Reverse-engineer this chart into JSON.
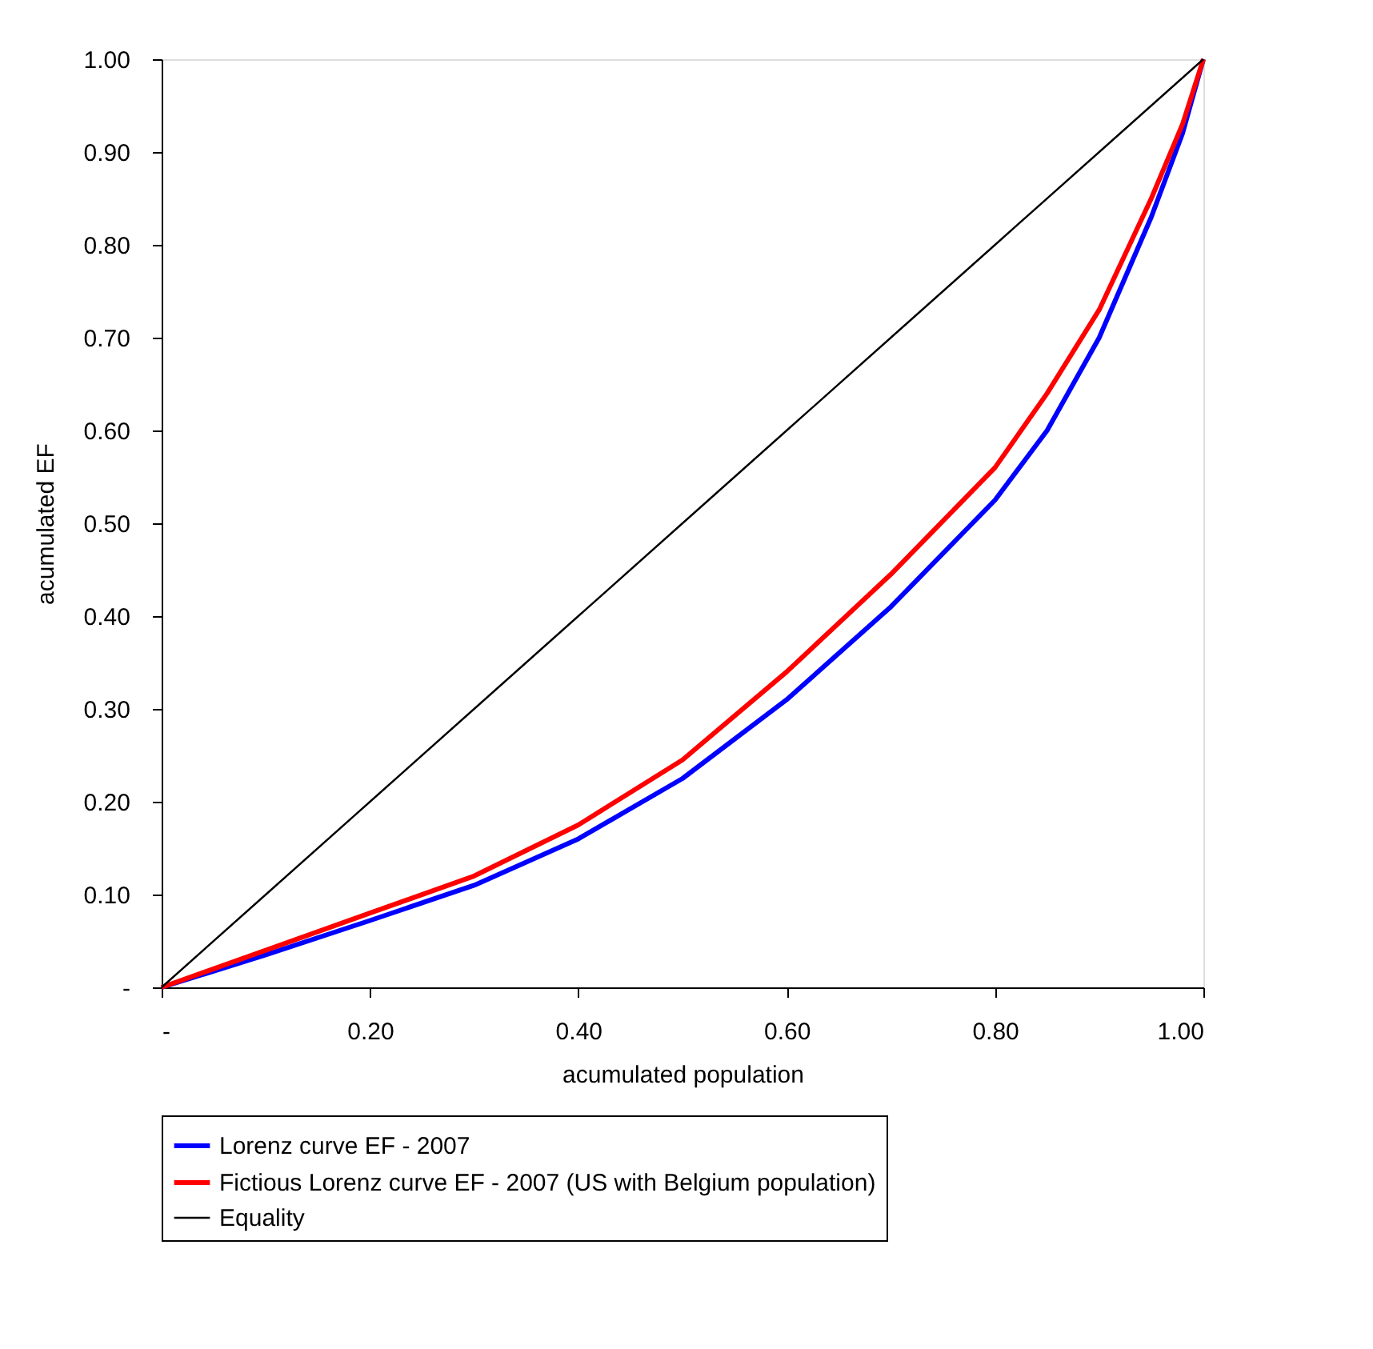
{
  "chart_data": {
    "type": "line",
    "xlabel": "acumulated population",
    "ylabel": "acumulated EF",
    "xlim": [
      0,
      1
    ],
    "ylim": [
      0,
      1
    ],
    "xticks": [
      {
        "value": 0,
        "label": "-"
      },
      {
        "value": 0.2,
        "label": "0.20"
      },
      {
        "value": 0.4,
        "label": "0.40"
      },
      {
        "value": 0.6,
        "label": "0.60"
      },
      {
        "value": 0.8,
        "label": "0.80"
      },
      {
        "value": 1,
        "label": "1.00"
      }
    ],
    "yticks": [
      {
        "value": 0,
        "label": "-"
      },
      {
        "value": 0.1,
        "label": "0.10"
      },
      {
        "value": 0.2,
        "label": "0.20"
      },
      {
        "value": 0.3,
        "label": "0.30"
      },
      {
        "value": 0.4,
        "label": "0.40"
      },
      {
        "value": 0.5,
        "label": "0.50"
      },
      {
        "value": 0.6,
        "label": "0.60"
      },
      {
        "value": 0.7,
        "label": "0.70"
      },
      {
        "value": 0.8,
        "label": "0.80"
      },
      {
        "value": 0.9,
        "label": "0.90"
      },
      {
        "value": 1,
        "label": "1.00"
      }
    ],
    "grid": false,
    "legend": "bottom",
    "marker": "none",
    "line_style": "solid",
    "series": [
      {
        "name": "Lorenz curve EF - 2007",
        "color": "#0000ff",
        "x": [
          0,
          0.1,
          0.2,
          0.3,
          0.4,
          0.5,
          0.6,
          0.7,
          0.8,
          0.85,
          0.9,
          0.95,
          0.98,
          1
        ],
        "values": [
          0,
          0.035,
          0.072,
          0.11,
          0.16,
          0.225,
          0.31,
          0.41,
          0.525,
          0.6,
          0.7,
          0.83,
          0.92,
          1
        ]
      },
      {
        "name": "Fictious Lorenz curve EF - 2007 (US with Belgium population)",
        "color": "#ff0000",
        "x": [
          0,
          0.1,
          0.2,
          0.3,
          0.4,
          0.5,
          0.6,
          0.7,
          0.8,
          0.85,
          0.9,
          0.95,
          0.98,
          1
        ],
        "values": [
          0,
          0.04,
          0.08,
          0.12,
          0.175,
          0.245,
          0.34,
          0.445,
          0.56,
          0.64,
          0.73,
          0.85,
          0.93,
          1
        ]
      },
      {
        "name": "Equality",
        "color": "#000000",
        "x": [
          0,
          0.1,
          0.2,
          0.3,
          0.4,
          0.5,
          0.6,
          0.7,
          0.8,
          0.9,
          1
        ],
        "values": [
          0,
          0.1,
          0.2,
          0.3,
          0.4,
          0.5,
          0.6,
          0.7,
          0.8,
          0.9,
          1
        ]
      }
    ]
  }
}
